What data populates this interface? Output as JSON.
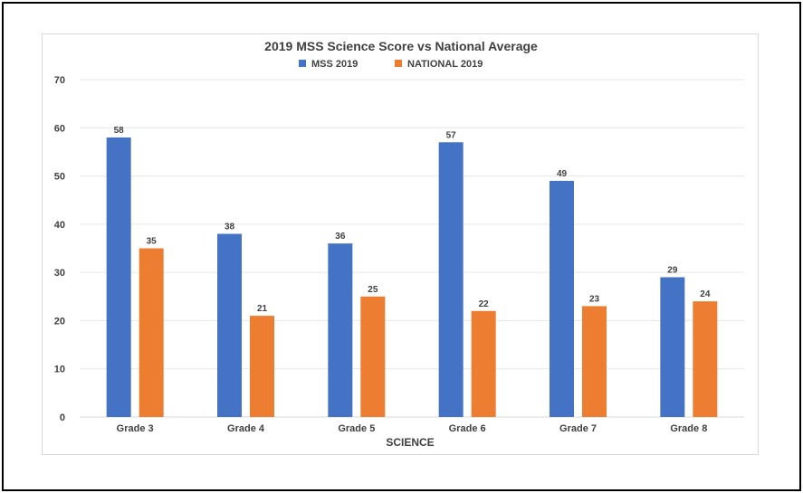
{
  "chart_data": {
    "type": "bar",
    "title": "2019 MSS Science Score vs National Average",
    "xlabel": "SCIENCE",
    "ylabel": "",
    "categories": [
      "Grade 3",
      "Grade 4",
      "Grade 5",
      "Grade 6",
      "Grade 7",
      "Grade 8"
    ],
    "series": [
      {
        "name": "MSS 2019",
        "color": "#4472c4",
        "values": [
          58,
          38,
          36,
          57,
          49,
          29
        ]
      },
      {
        "name": "NATIONAL 2019",
        "color": "#ed7d31",
        "values": [
          35,
          21,
          25,
          22,
          23,
          24
        ]
      }
    ],
    "ylim": [
      0,
      70
    ],
    "yticks": [
      "0",
      "10",
      "20",
      "30",
      "40",
      "50",
      "60",
      "70"
    ],
    "grid": true,
    "legend": "top-center"
  }
}
